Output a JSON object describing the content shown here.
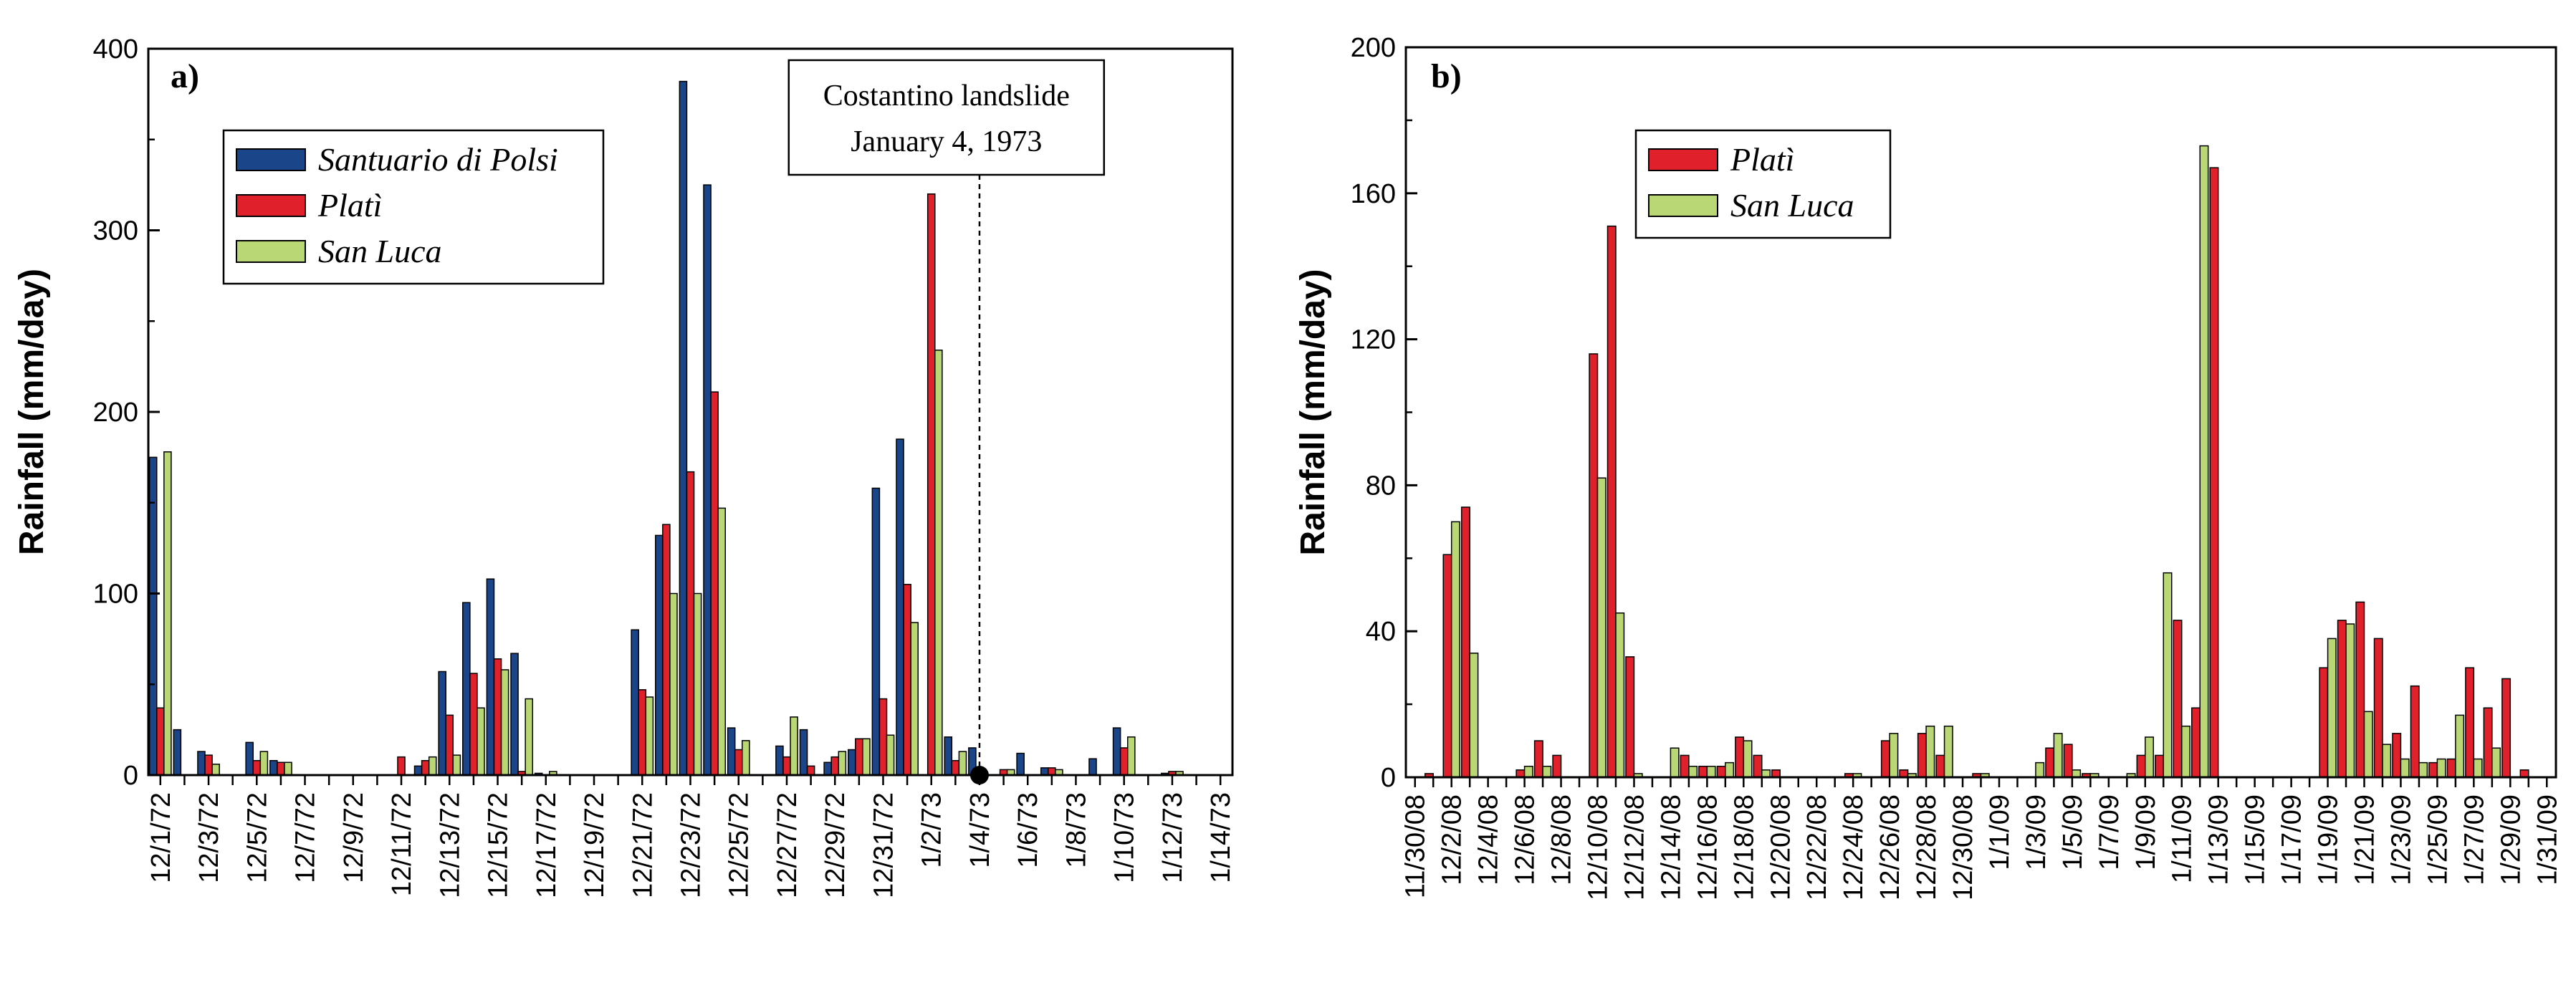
{
  "colors": {
    "santuario_di_polsi": "#1a4589",
    "plati": "#e0202a",
    "san_luca": "#b9d774"
  },
  "chart_data": [
    {
      "type": "bar",
      "panel_label": "a)",
      "ylabel": "Rainfall (mm/day)",
      "ylim": [
        0,
        400
      ],
      "yticks": [
        0,
        100,
        200,
        300,
        400
      ],
      "legend_position": "top-left",
      "categories": [
        "12/1/72",
        "12/2/72",
        "12/3/72",
        "12/4/72",
        "12/5/72",
        "12/6/72",
        "12/7/72",
        "12/8/72",
        "12/9/72",
        "12/10/72",
        "12/11/72",
        "12/12/72",
        "12/13/72",
        "12/14/72",
        "12/15/72",
        "12/16/72",
        "12/17/72",
        "12/18/72",
        "12/19/72",
        "12/20/72",
        "12/21/72",
        "12/22/72",
        "12/23/72",
        "12/24/72",
        "12/25/72",
        "12/26/72",
        "12/27/72",
        "12/28/72",
        "12/29/72",
        "12/30/72",
        "12/31/72",
        "1/1/73",
        "1/2/73",
        "1/3/73",
        "1/4/73",
        "1/5/73",
        "1/6/73",
        "1/7/73",
        "1/8/73",
        "1/9/73",
        "1/10/73",
        "1/11/73",
        "1/12/73",
        "1/13/73",
        "1/14/73"
      ],
      "tick_labels": [
        "12/1/72",
        "12/3/72",
        "12/5/72",
        "12/7/72",
        "12/9/72",
        "12/11/72",
        "12/13/72",
        "12/15/72",
        "12/17/72",
        "12/19/72",
        "12/21/72",
        "12/23/72",
        "12/25/72",
        "12/27/72",
        "12/29/72",
        "12/31/72",
        "1/2/73",
        "1/4/73",
        "1/6/73",
        "1/8/73",
        "1/10/73",
        "1/12/73",
        "1/14/73"
      ],
      "series": [
        {
          "name": "Santuario di Polsi",
          "values": [
            175,
            25,
            13,
            0,
            18,
            8,
            0,
            0,
            0,
            0,
            0,
            5,
            57,
            95,
            108,
            67,
            1,
            0,
            0,
            0,
            80,
            132,
            382,
            325,
            26,
            0,
            16,
            25,
            7,
            14,
            158,
            185,
            0,
            21,
            15,
            0,
            12,
            4,
            0,
            9,
            26,
            0,
            1,
            0,
            0
          ]
        },
        {
          "name": "Platì",
          "values": [
            37,
            0,
            11,
            0,
            8,
            7,
            0,
            0,
            0,
            0,
            10,
            8,
            33,
            56,
            64,
            2,
            0,
            0,
            0,
            0,
            47,
            138,
            167,
            211,
            14,
            0,
            10,
            5,
            10,
            20,
            42,
            105,
            320,
            8,
            0,
            3,
            0,
            4,
            0,
            0,
            15,
            0,
            2,
            0,
            0
          ]
        },
        {
          "name": "San Luca",
          "values": [
            178,
            0,
            6,
            0,
            13,
            7,
            0,
            0,
            0,
            0,
            0,
            10,
            11,
            37,
            58,
            42,
            2,
            0,
            0,
            0,
            43,
            100,
            100,
            147,
            19,
            0,
            32,
            0,
            13,
            20,
            22,
            84,
            234,
            13,
            0,
            3,
            0,
            3,
            0,
            0,
            21,
            0,
            2,
            0,
            0
          ]
        }
      ],
      "annotation": {
        "text_line1": "Costantino landslide",
        "text_line2": "January 4, 1973",
        "x_category": "1/4/73"
      }
    },
    {
      "type": "bar",
      "panel_label": "b)",
      "ylabel": "Rainfall (mm/day)",
      "ylim": [
        0,
        200
      ],
      "yticks": [
        0,
        40,
        80,
        120,
        160,
        200
      ],
      "legend_position": "top-left",
      "categories": [
        "11/30/08",
        "12/1/08",
        "12/2/08",
        "12/3/08",
        "12/4/08",
        "12/5/08",
        "12/6/08",
        "12/7/08",
        "12/8/08",
        "12/9/08",
        "12/10/08",
        "12/11/08",
        "12/12/08",
        "12/13/08",
        "12/14/08",
        "12/15/08",
        "12/16/08",
        "12/17/08",
        "12/18/08",
        "12/19/08",
        "12/20/08",
        "12/21/08",
        "12/22/08",
        "12/23/08",
        "12/24/08",
        "12/25/08",
        "12/26/08",
        "12/27/08",
        "12/28/08",
        "12/29/08",
        "12/30/08",
        "12/31/08",
        "1/1/09",
        "1/2/09",
        "1/3/09",
        "1/4/09",
        "1/5/09",
        "1/6/09",
        "1/7/09",
        "1/8/09",
        "1/9/09",
        "1/10/09",
        "1/11/09",
        "1/12/09",
        "1/13/09",
        "1/14/09",
        "1/15/09",
        "1/16/09",
        "1/17/09",
        "1/18/09",
        "1/19/09",
        "1/20/09",
        "1/21/09",
        "1/22/09",
        "1/23/09",
        "1/24/09",
        "1/25/09",
        "1/26/09",
        "1/27/09",
        "1/28/09",
        "1/29/09",
        "1/30/09",
        "1/31/09"
      ],
      "tick_labels": [
        "11/30/08",
        "12/2/08",
        "12/4/08",
        "12/6/08",
        "12/8/08",
        "12/10/08",
        "12/12/08",
        "12/14/08",
        "12/16/08",
        "12/18/08",
        "12/20/08",
        "12/22/08",
        "12/24/08",
        "12/26/08",
        "12/28/08",
        "12/30/08",
        "1/1/09",
        "1/3/09",
        "1/5/09",
        "1/7/09",
        "1/9/09",
        "1/11/09",
        "1/13/09",
        "1/15/09",
        "1/17/09",
        "1/19/09",
        "1/21/09",
        "1/23/09",
        "1/25/09",
        "1/27/09",
        "1/29/09",
        "1/31/09"
      ],
      "series": [
        {
          "name": "Platì",
          "values": [
            0,
            1,
            61,
            74,
            0,
            0,
            2,
            10,
            6,
            0,
            116,
            151,
            33,
            0,
            0,
            6,
            3,
            3,
            11,
            6,
            2,
            0,
            0,
            0,
            1,
            0,
            10,
            2,
            12,
            6,
            0,
            1,
            0,
            0,
            0,
            8,
            9,
            1,
            0,
            0,
            6,
            6,
            43,
            19,
            167,
            0,
            0,
            0,
            0,
            0,
            30,
            43,
            48,
            38,
            12,
            25,
            4,
            5,
            30,
            19,
            27,
            2,
            0
          ]
        },
        {
          "name": "San Luca",
          "values": [
            0,
            0,
            70,
            34,
            0,
            0,
            3,
            3,
            0,
            0,
            82,
            45,
            1,
            0,
            8,
            3,
            3,
            4,
            10,
            2,
            0,
            0,
            0,
            0,
            1,
            0,
            12,
            1,
            14,
            14,
            0,
            1,
            0,
            0,
            4,
            12,
            2,
            1,
            0,
            1,
            11,
            56,
            14,
            173,
            0,
            0,
            0,
            0,
            0,
            0,
            38,
            42,
            18,
            9,
            5,
            4,
            5,
            17,
            5,
            8,
            0,
            0,
            0
          ]
        }
      ]
    }
  ]
}
